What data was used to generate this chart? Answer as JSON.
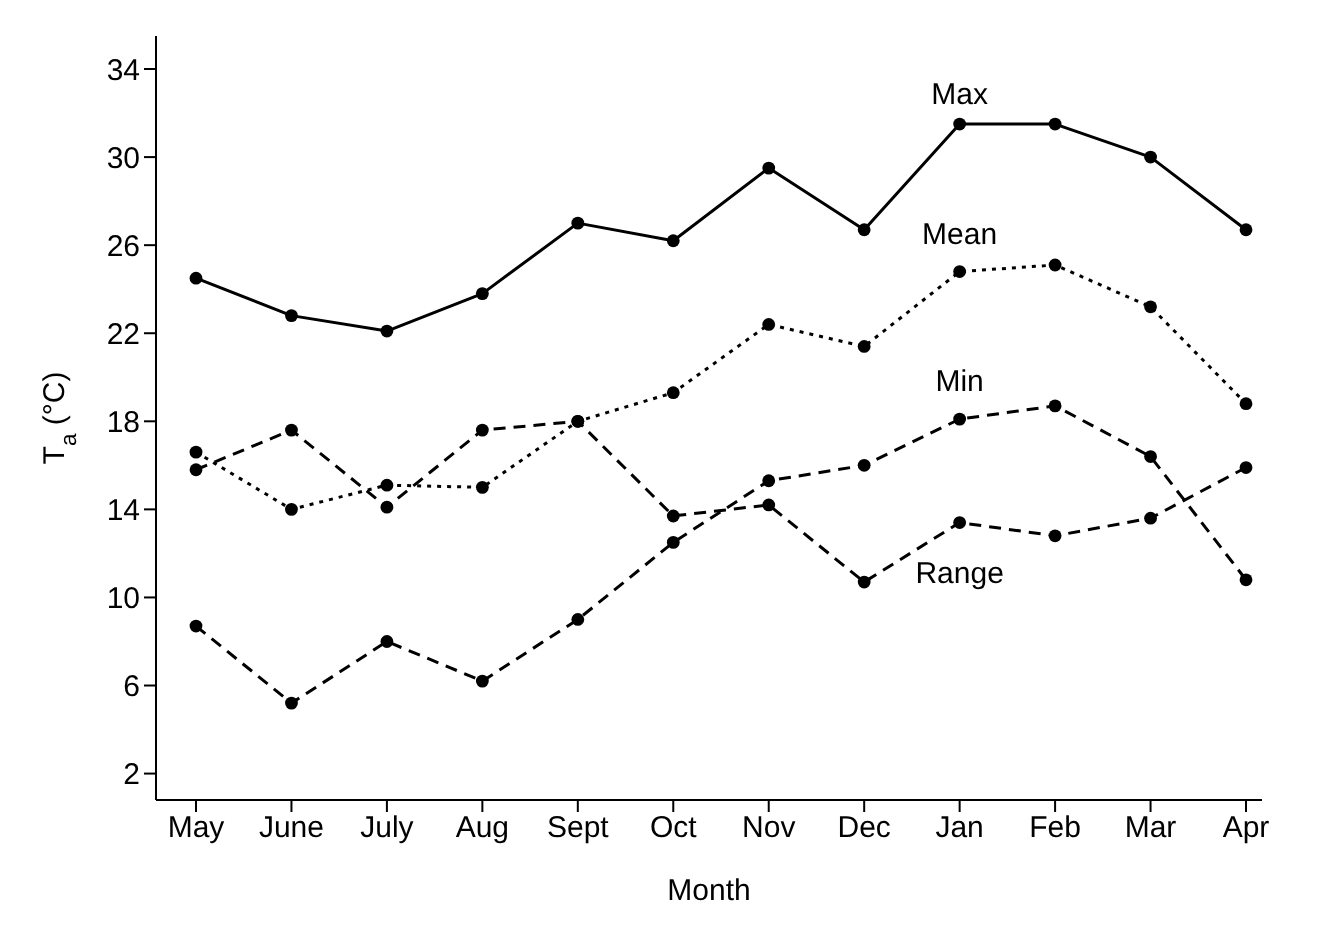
{
  "chart_data": {
    "type": "line",
    "xlabel": "Month",
    "ylabel": "T$_{a}$ (°C)",
    "categories": [
      "May",
      "June",
      "July",
      "Aug",
      "Sept",
      "Oct",
      "Nov",
      "Dec",
      "Jan",
      "Feb",
      "Mar",
      "Apr"
    ],
    "series": [
      {
        "name": "Max",
        "color": "#000000",
        "line_style": "solid",
        "values": [
          24.5,
          22.8,
          22.1,
          23.8,
          27.0,
          26.2,
          29.5,
          26.7,
          31.5,
          31.5,
          30.0,
          26.7
        ]
      },
      {
        "name": "Mean",
        "color": "#000000",
        "line_style": "dotted",
        "values": [
          16.6,
          14.0,
          15.1,
          15.0,
          18.0,
          19.3,
          22.4,
          21.4,
          24.8,
          25.1,
          23.2,
          18.8
        ]
      },
      {
        "name": "Min",
        "color": "#000000",
        "line_style": "dashed",
        "values": [
          8.7,
          5.2,
          8.0,
          6.2,
          9.0,
          12.5,
          15.3,
          16.0,
          18.1,
          18.7,
          16.4,
          10.8
        ]
      },
      {
        "name": "Range",
        "color": "#000000",
        "line_style": "dashed",
        "values": [
          15.8,
          17.6,
          14.1,
          17.6,
          18.0,
          13.7,
          14.2,
          10.7,
          13.4,
          12.8,
          13.6,
          15.9
        ]
      }
    ],
    "ylim": [
      0.8,
      35.5
    ],
    "yticks": [
      2,
      6,
      10,
      14,
      18,
      22,
      26,
      30,
      34
    ],
    "grid": false,
    "legend": false,
    "marker": "circle"
  }
}
